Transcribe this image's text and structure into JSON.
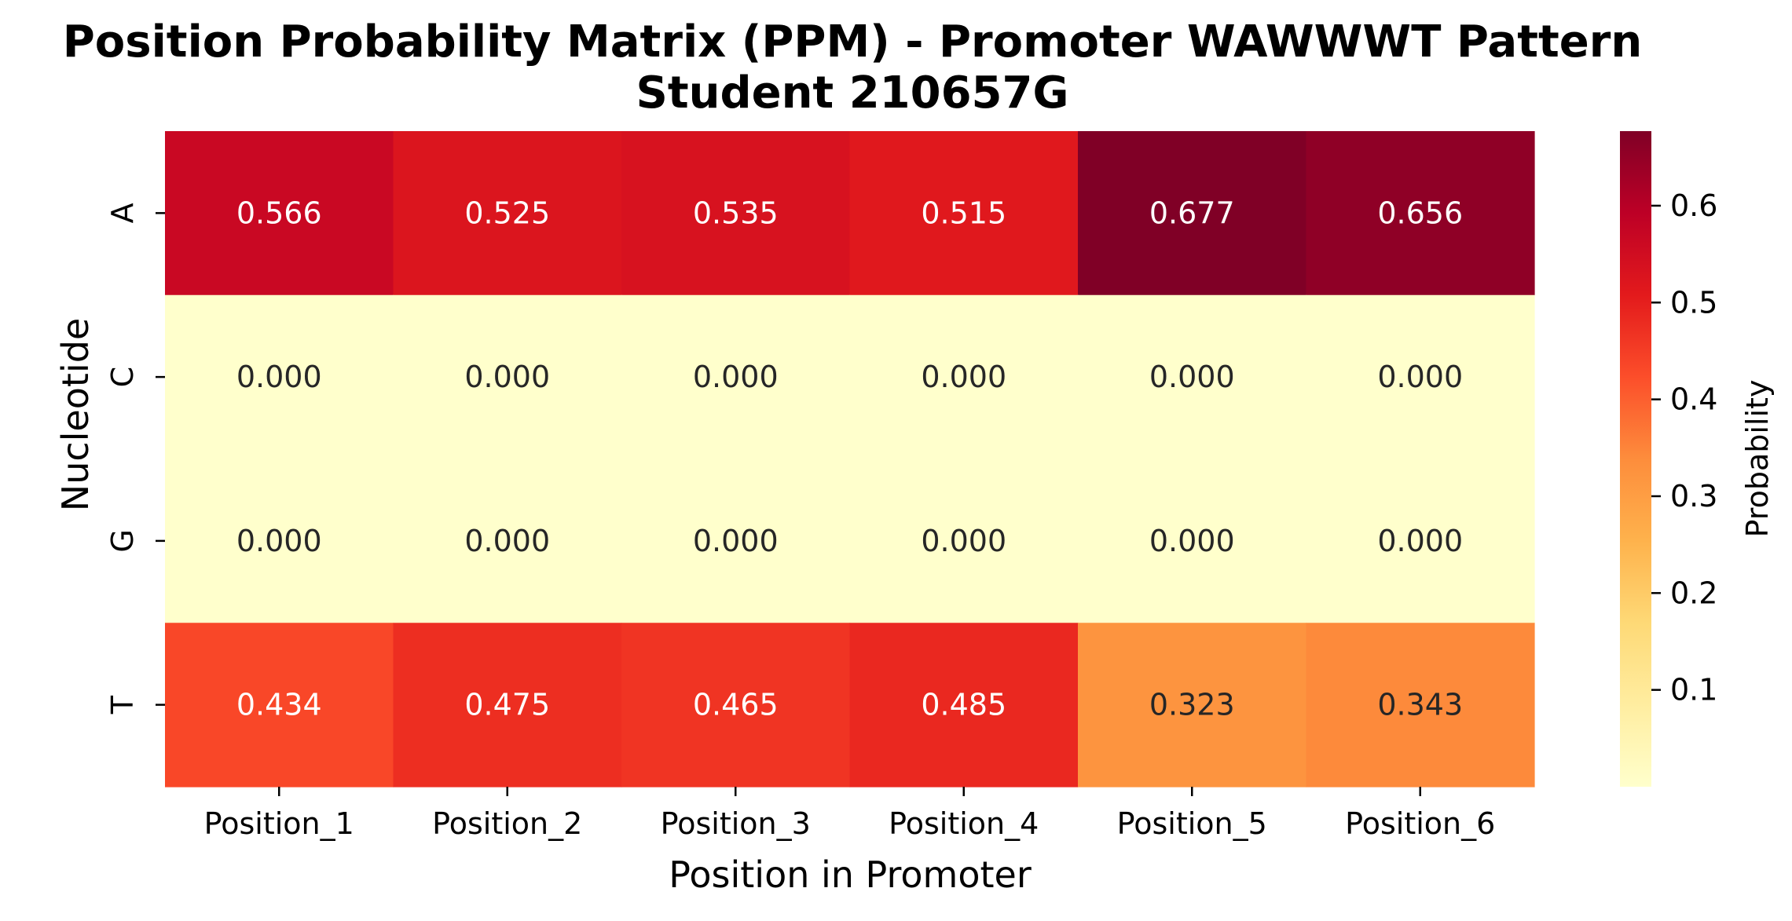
{
  "chart_data": {
    "type": "heatmap",
    "title": "Position Probability Matrix (PPM) - Promoter WAWWWT Pattern",
    "subtitle": "Student 210657G",
    "xlabel": "Position in Promoter",
    "ylabel": "Nucleotide",
    "x_categories": [
      "Position_1",
      "Position_2",
      "Position_3",
      "Position_4",
      "Position_5",
      "Position_6"
    ],
    "y_categories": [
      "A",
      "C",
      "G",
      "T"
    ],
    "values": [
      [
        0.566,
        0.525,
        0.535,
        0.515,
        0.677,
        0.656
      ],
      [
        0.0,
        0.0,
        0.0,
        0.0,
        0.0,
        0.0
      ],
      [
        0.0,
        0.0,
        0.0,
        0.0,
        0.0,
        0.0
      ],
      [
        0.434,
        0.475,
        0.465,
        0.485,
        0.323,
        0.343
      ]
    ],
    "value_labels": [
      [
        "0.566",
        "0.525",
        "0.535",
        "0.515",
        "0.677",
        "0.656"
      ],
      [
        "0.000",
        "0.000",
        "0.000",
        "0.000",
        "0.000",
        "0.000"
      ],
      [
        "0.000",
        "0.000",
        "0.000",
        "0.000",
        "0.000",
        "0.000"
      ],
      [
        "0.434",
        "0.475",
        "0.465",
        "0.485",
        "0.323",
        "0.343"
      ]
    ],
    "colormap": "YlOrRd",
    "colorbar": {
      "label": "Probability",
      "range": [
        0.0,
        0.677
      ],
      "ticks": [
        0.1,
        0.2,
        0.3,
        0.4,
        0.5,
        0.6
      ],
      "tick_labels": [
        "0.1",
        "0.2",
        "0.3",
        "0.4",
        "0.5",
        "0.6"
      ]
    },
    "grid": false,
    "legend": "colorbar-right"
  }
}
